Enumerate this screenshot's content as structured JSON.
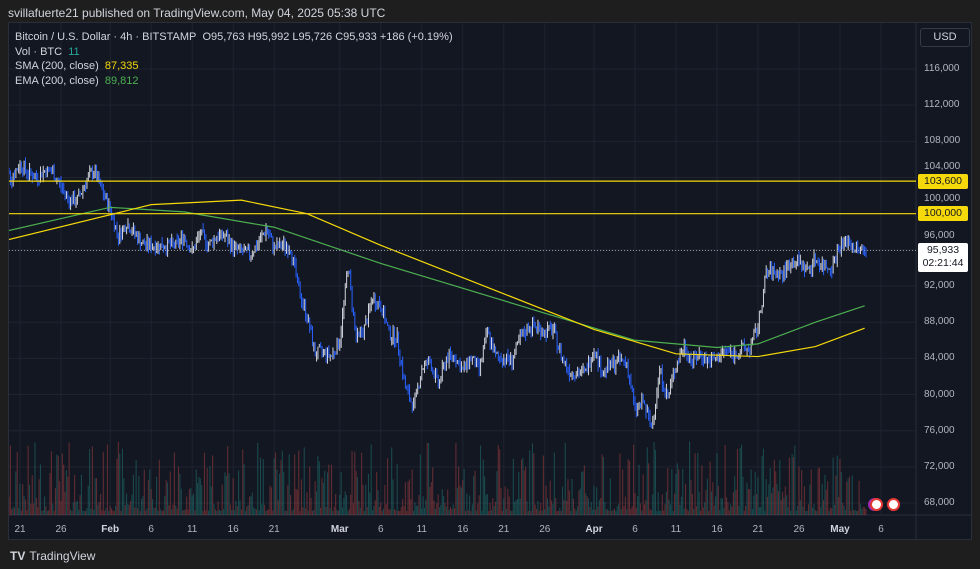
{
  "header": {
    "published": "svillafuerte21 published on TradingView.com, May 04, 2025 05:38 UTC"
  },
  "legend": {
    "symbol": "Bitcoin / U.S. Dollar · 4h · BITSTAMP",
    "ohlc": "O95,763  H95,992  L95,726  C95,933  +186 (+0.19%)",
    "vol_label": "Vol · BTC",
    "vol_value": "11",
    "sma_label": "SMA (200, close)",
    "sma_value": "87,335",
    "ema_label": "EMA (200, close)",
    "ema_value": "89,812"
  },
  "price_axis": {
    "currency": "USD",
    "ticks": [
      "116,000",
      "112,000",
      "108,000",
      "104,000",
      "100,000",
      "96,000",
      "92,000",
      "88,000",
      "84,000",
      "80,000",
      "76,000",
      "72,000",
      "68,000"
    ],
    "levels": [
      {
        "label": "103,600",
        "value": 103600
      },
      {
        "label": "100,000",
        "value": 100000
      }
    ],
    "current": {
      "price": "95,933",
      "countdown": "02:21:44",
      "value": 95933
    }
  },
  "time_axis": {
    "ticks": [
      {
        "label": "21",
        "date": "2025-01-21"
      },
      {
        "label": "26",
        "date": "2025-01-26"
      },
      {
        "label": "Feb",
        "date": "2025-02-01",
        "bold": true
      },
      {
        "label": "6",
        "date": "2025-02-06"
      },
      {
        "label": "11",
        "date": "2025-02-11"
      },
      {
        "label": "16",
        "date": "2025-02-16"
      },
      {
        "label": "21",
        "date": "2025-02-21"
      },
      {
        "label": "Mar",
        "date": "2025-03-01",
        "bold": true
      },
      {
        "label": "6",
        "date": "2025-03-06"
      },
      {
        "label": "11",
        "date": "2025-03-11"
      },
      {
        "label": "16",
        "date": "2025-03-16"
      },
      {
        "label": "21",
        "date": "2025-03-21"
      },
      {
        "label": "26",
        "date": "2025-03-26"
      },
      {
        "label": "Apr",
        "date": "2025-04-01",
        "bold": true
      },
      {
        "label": "6",
        "date": "2025-04-06"
      },
      {
        "label": "11",
        "date": "2025-04-11"
      },
      {
        "label": "16",
        "date": "2025-04-16"
      },
      {
        "label": "21",
        "date": "2025-04-21"
      },
      {
        "label": "26",
        "date": "2025-04-26"
      },
      {
        "label": "May",
        "date": "2025-05-01",
        "bold": true
      },
      {
        "label": "6",
        "date": "2025-05-06"
      }
    ]
  },
  "colors": {
    "up": "#d1d4dc",
    "down": "#2962ff",
    "sma": "#f5d90a",
    "ema": "#4caf50",
    "level": "#f5d90a",
    "background": "#131722"
  },
  "footer": {
    "brand": "TradingView"
  },
  "chart_data": {
    "type": "candlestick",
    "interval": "4h",
    "ylim": [
      66000,
      118000
    ],
    "daily_close": [
      [
        "2025-01-19",
        105500
      ],
      [
        "2025-01-20",
        104000
      ],
      [
        "2025-01-21",
        105500
      ],
      [
        "2025-01-22",
        104500
      ],
      [
        "2025-01-23",
        104000
      ],
      [
        "2025-01-24",
        104800
      ],
      [
        "2025-01-25",
        104600
      ],
      [
        "2025-01-26",
        103000
      ],
      [
        "2025-01-27",
        101500
      ],
      [
        "2025-01-28",
        101500
      ],
      [
        "2025-01-29",
        103500
      ],
      [
        "2025-01-30",
        104800
      ],
      [
        "2025-01-31",
        102500
      ],
      [
        "2025-02-01",
        100500
      ],
      [
        "2025-02-02",
        97500
      ],
      [
        "2025-02-03",
        99000
      ],
      [
        "2025-02-04",
        97800
      ],
      [
        "2025-02-05",
        96600
      ],
      [
        "2025-02-06",
        96500
      ],
      [
        "2025-02-07",
        96500
      ],
      [
        "2025-02-08",
        96500
      ],
      [
        "2025-02-09",
        96500
      ],
      [
        "2025-02-10",
        97500
      ],
      [
        "2025-02-11",
        95800
      ],
      [
        "2025-02-12",
        97800
      ],
      [
        "2025-02-13",
        96600
      ],
      [
        "2025-02-14",
        97500
      ],
      [
        "2025-02-15",
        97500
      ],
      [
        "2025-02-16",
        96200
      ],
      [
        "2025-02-17",
        95800
      ],
      [
        "2025-02-18",
        95500
      ],
      [
        "2025-02-19",
        96600
      ],
      [
        "2025-02-20",
        98300
      ],
      [
        "2025-02-21",
        96200
      ],
      [
        "2025-02-22",
        96500
      ],
      [
        "2025-02-23",
        96200
      ],
      [
        "2025-02-24",
        91500
      ],
      [
        "2025-02-25",
        88700
      ],
      [
        "2025-02-26",
        84500
      ],
      [
        "2025-02-27",
        84700
      ],
      [
        "2025-02-28",
        84300
      ],
      [
        "2025-03-01",
        86000
      ],
      [
        "2025-03-02",
        94200
      ],
      [
        "2025-03-03",
        86100
      ],
      [
        "2025-03-04",
        87300
      ],
      [
        "2025-03-05",
        90600
      ],
      [
        "2025-03-06",
        89900
      ],
      [
        "2025-03-07",
        86800
      ],
      [
        "2025-03-08",
        86200
      ],
      [
        "2025-03-09",
        80700
      ],
      [
        "2025-03-10",
        78600
      ],
      [
        "2025-03-11",
        82900
      ],
      [
        "2025-03-12",
        83700
      ],
      [
        "2025-03-13",
        81000
      ],
      [
        "2025-03-14",
        84000
      ],
      [
        "2025-03-15",
        84300
      ],
      [
        "2025-03-16",
        82600
      ],
      [
        "2025-03-17",
        84100
      ],
      [
        "2025-03-18",
        82700
      ],
      [
        "2025-03-19",
        86900
      ],
      [
        "2025-03-20",
        84200
      ],
      [
        "2025-03-21",
        84000
      ],
      [
        "2025-03-22",
        83800
      ],
      [
        "2025-03-23",
        86100
      ],
      [
        "2025-03-24",
        87500
      ],
      [
        "2025-03-25",
        87500
      ],
      [
        "2025-03-26",
        86900
      ],
      [
        "2025-03-27",
        87200
      ],
      [
        "2025-03-28",
        84300
      ],
      [
        "2025-03-29",
        82600
      ],
      [
        "2025-03-30",
        82400
      ],
      [
        "2025-03-31",
        82500
      ],
      [
        "2025-04-01",
        85200
      ],
      [
        "2025-04-02",
        82500
      ],
      [
        "2025-04-03",
        83100
      ],
      [
        "2025-04-04",
        83800
      ],
      [
        "2025-04-05",
        83500
      ],
      [
        "2025-04-06",
        78200
      ],
      [
        "2025-04-07",
        79200
      ],
      [
        "2025-04-08",
        76300
      ],
      [
        "2025-04-09",
        82600
      ],
      [
        "2025-04-10",
        79600
      ],
      [
        "2025-04-11",
        83400
      ],
      [
        "2025-04-12",
        85300
      ],
      [
        "2025-04-13",
        83700
      ],
      [
        "2025-04-14",
        84500
      ],
      [
        "2025-04-15",
        83600
      ],
      [
        "2025-04-16",
        84000
      ],
      [
        "2025-04-17",
        84900
      ],
      [
        "2025-04-18",
        84400
      ],
      [
        "2025-04-19",
        85000
      ],
      [
        "2025-04-20",
        85100
      ],
      [
        "2025-04-21",
        87500
      ],
      [
        "2025-04-22",
        93400
      ],
      [
        "2025-04-23",
        93600
      ],
      [
        "2025-04-24",
        93300
      ],
      [
        "2025-04-25",
        94600
      ],
      [
        "2025-04-26",
        94700
      ],
      [
        "2025-04-27",
        93700
      ],
      [
        "2025-04-28",
        95000
      ],
      [
        "2025-04-29",
        94200
      ],
      [
        "2025-04-30",
        94200
      ],
      [
        "2025-05-01",
        96500
      ],
      [
        "2025-05-02",
        96900
      ],
      [
        "2025-05-03",
        96000
      ],
      [
        "2025-05-04",
        95933
      ]
    ],
    "sma": [
      [
        "2025-01-19",
        97000
      ],
      [
        "2025-02-06",
        101000
      ],
      [
        "2025-02-17",
        101500
      ],
      [
        "2025-02-25",
        100000
      ],
      [
        "2025-03-06",
        96500
      ],
      [
        "2025-03-20",
        91500
      ],
      [
        "2025-04-01",
        87200
      ],
      [
        "2025-04-11",
        84500
      ],
      [
        "2025-04-21",
        84200
      ],
      [
        "2025-04-28",
        85300
      ],
      [
        "2025-05-04",
        87335
      ]
    ],
    "ema": [
      [
        "2025-01-19",
        98000
      ],
      [
        "2025-02-01",
        100700
      ],
      [
        "2025-02-10",
        100200
      ],
      [
        "2025-02-21",
        98500
      ],
      [
        "2025-03-06",
        94500
      ],
      [
        "2025-03-26",
        89000
      ],
      [
        "2025-04-06",
        86000
      ],
      [
        "2025-04-16",
        85200
      ],
      [
        "2025-04-21",
        85600
      ],
      [
        "2025-04-28",
        88000
      ],
      [
        "2025-05-04",
        89812
      ]
    ]
  }
}
